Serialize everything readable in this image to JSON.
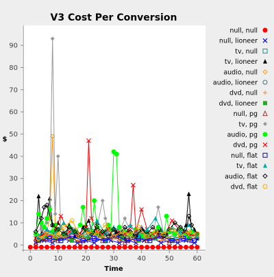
{
  "chart_data": {
    "type": "line",
    "title": "V3 Cost Per Conversion",
    "xlabel": "Time",
    "ylabel": "$",
    "xlim": [
      -3,
      63
    ],
    "ylim": [
      -3,
      99
    ],
    "xticks": [
      0,
      10,
      20,
      30,
      40,
      50,
      60
    ],
    "yticks": [
      0,
      10,
      20,
      30,
      40,
      50,
      60,
      70,
      80,
      90
    ],
    "grid": false,
    "legend_position": "right",
    "series": [
      {
        "name": "null, null",
        "color": "#ff0000",
        "marker": "circle-filled",
        "x": [
          0,
          2,
          4,
          6,
          8,
          10,
          12,
          14,
          16,
          18,
          20,
          22,
          24,
          26,
          28,
          30,
          32,
          34,
          36,
          38,
          40,
          42,
          44,
          46,
          48,
          50,
          52,
          54,
          56,
          58,
          60
        ],
        "y": [
          -1,
          -1,
          -1,
          -1,
          -1,
          -1,
          -1,
          -1,
          -1,
          -1,
          -1,
          -1,
          -1,
          -1,
          -1,
          -1,
          -1,
          -1,
          -1,
          -1,
          -1,
          -1,
          -1,
          -1,
          -1,
          -1,
          -1,
          -1,
          -1,
          -1,
          -1
        ]
      },
      {
        "name": "null, lioneer",
        "color": "#0000cc",
        "marker": "x",
        "x": [
          2,
          5,
          8,
          11,
          14,
          17,
          20,
          23,
          26,
          29,
          32,
          35,
          38,
          41,
          44,
          47,
          50,
          53,
          56,
          59
        ],
        "y": [
          1,
          2,
          1,
          3,
          2,
          1,
          2,
          1,
          3,
          2,
          1,
          2,
          1,
          2,
          3,
          1,
          2,
          1,
          2,
          1
        ]
      },
      {
        "name": "tv, null",
        "color": "#009999",
        "marker": "square-open",
        "x": [
          3,
          7,
          11,
          15,
          19,
          23,
          27,
          31,
          35,
          39,
          43,
          47,
          51,
          55,
          59
        ],
        "y": [
          3,
          5,
          2,
          4,
          3,
          6,
          2,
          5,
          3,
          4,
          2,
          5,
          3,
          4,
          2
        ]
      },
      {
        "name": "tv, lioneer",
        "color": "#000000",
        "marker": "triangle-filled",
        "x": [
          2,
          3,
          4,
          5,
          6,
          7,
          8,
          9,
          10,
          11,
          12,
          13,
          14,
          15,
          16,
          17,
          18,
          19,
          20,
          21,
          22,
          23,
          24,
          25,
          26,
          27,
          28,
          29,
          30,
          31,
          32,
          33,
          34,
          35,
          36,
          37,
          38,
          39,
          40,
          41,
          42,
          43,
          44,
          45,
          46,
          47,
          48,
          49,
          50,
          51,
          52,
          53,
          54,
          55,
          56,
          57,
          58,
          59,
          60
        ],
        "y": [
          3,
          22,
          5,
          8,
          12,
          21,
          9,
          7,
          10,
          8,
          6,
          5,
          9,
          7,
          4,
          6,
          5,
          8,
          9,
          11,
          7,
          6,
          10,
          5,
          4,
          6,
          8,
          5,
          7,
          6,
          4,
          5,
          3,
          6,
          5,
          4,
          7,
          5,
          8,
          6,
          5,
          4,
          3,
          6,
          5,
          7,
          4,
          5,
          6,
          8,
          5,
          7,
          4,
          6,
          9,
          23,
          5,
          7,
          3
        ]
      },
      {
        "name": "audio, null",
        "color": "#ff9900",
        "marker": "diamond-open",
        "x": [
          4,
          6,
          7,
          8,
          9,
          10,
          12,
          14,
          16,
          18,
          20,
          22,
          24,
          26,
          28,
          30,
          32,
          34,
          36,
          38,
          40,
          42,
          44,
          46,
          48,
          50,
          52,
          54,
          56,
          58,
          60
        ],
        "y": [
          3,
          6,
          12,
          49,
          8,
          5,
          4,
          3,
          6,
          4,
          3,
          5,
          4,
          3,
          7,
          4,
          3,
          5,
          4,
          3,
          6,
          4,
          3,
          5,
          4,
          3,
          6,
          4,
          3,
          5,
          4
        ]
      },
      {
        "name": "audio, lioneer",
        "color": "#447777",
        "marker": "circle-open",
        "x": [
          3,
          6,
          9,
          12,
          15,
          18,
          21,
          24,
          27,
          30,
          33,
          36,
          39,
          42,
          45,
          48,
          51,
          54,
          57,
          60
        ],
        "y": [
          4,
          6,
          5,
          3,
          7,
          4,
          5,
          3,
          6,
          4,
          5,
          3,
          6,
          4,
          5,
          3,
          6,
          4,
          5,
          3
        ]
      },
      {
        "name": "dvd, null",
        "color": "#ff8844",
        "marker": "plus",
        "x": [
          2,
          5,
          8,
          11,
          14,
          17,
          20,
          23,
          26,
          29,
          32,
          35,
          38,
          41,
          44,
          47,
          50,
          53,
          56,
          59
        ],
        "y": [
          2,
          3,
          2,
          4,
          3,
          2,
          3,
          2,
          4,
          3,
          2,
          3,
          2,
          4,
          3,
          2,
          3,
          2,
          4,
          3
        ]
      },
      {
        "name": "dvd, lioneer",
        "color": "#22aa22",
        "marker": "square-filled",
        "x": [
          3,
          6,
          9,
          12,
          15,
          18,
          21,
          24,
          27,
          30,
          33,
          36,
          39,
          42,
          45,
          48,
          51,
          54,
          57,
          60
        ],
        "y": [
          2,
          4,
          3,
          5,
          2,
          4,
          3,
          5,
          2,
          4,
          3,
          5,
          2,
          4,
          3,
          5,
          2,
          4,
          3,
          5
        ]
      },
      {
        "name": "null, pg",
        "color": "#993333",
        "marker": "triangle-open",
        "x": [
          2,
          6,
          10,
          14,
          18,
          22,
          26,
          30,
          34,
          38,
          42,
          46,
          50,
          54,
          58
        ],
        "y": [
          1,
          3,
          2,
          4,
          1,
          3,
          2,
          4,
          1,
          3,
          2,
          4,
          1,
          3,
          2
        ]
      },
      {
        "name": "tv, pg",
        "color": "#999999",
        "marker": "diamond-filled",
        "x": [
          2,
          4,
          6,
          7,
          8,
          9,
          10,
          11,
          12,
          14,
          16,
          18,
          20,
          22,
          24,
          26,
          27,
          28,
          30,
          32,
          34,
          36,
          38,
          40,
          42,
          44,
          46,
          48,
          50,
          52,
          54,
          56,
          58,
          60
        ],
        "y": [
          5,
          8,
          10,
          15,
          93,
          14,
          40,
          8,
          6,
          5,
          7,
          4,
          6,
          5,
          8,
          20,
          12,
          6,
          7,
          5,
          12,
          6,
          5,
          8,
          6,
          4,
          17,
          5,
          6,
          4,
          7,
          5,
          6,
          4
        ]
      },
      {
        "name": "audio, pg",
        "color": "#00ff00",
        "marker": "circle-filled",
        "x": [
          2,
          3,
          4,
          5,
          6,
          7,
          8,
          9,
          10,
          12,
          14,
          16,
          18,
          19,
          20,
          22,
          23,
          24,
          26,
          28,
          29,
          30,
          31,
          32,
          34,
          36,
          38,
          40,
          42,
          44,
          46,
          48,
          49,
          50,
          52,
          54,
          56,
          58,
          60
        ],
        "y": [
          5,
          14,
          10,
          8,
          12,
          16,
          6,
          9,
          7,
          5,
          8,
          6,
          9,
          17,
          7,
          6,
          20,
          8,
          5,
          9,
          7,
          42,
          41,
          8,
          6,
          5,
          7,
          4,
          6,
          5,
          8,
          4,
          13,
          6,
          5,
          7,
          4,
          6,
          5
        ]
      },
      {
        "name": "dvd, pg",
        "color": "#ff0000",
        "marker": "x",
        "x": [
          2,
          5,
          8,
          11,
          14,
          17,
          20,
          21,
          22,
          24,
          26,
          28,
          30,
          32,
          34,
          36,
          37,
          38,
          40,
          42,
          44,
          46,
          48,
          51,
          54,
          57,
          60
        ],
        "y": [
          3,
          5,
          4,
          13,
          6,
          4,
          8,
          47,
          12,
          6,
          5,
          7,
          4,
          6,
          5,
          8,
          27,
          6,
          16,
          7,
          5,
          6,
          4,
          11,
          6,
          5,
          4
        ]
      },
      {
        "name": "null, flat",
        "color": "#0000ff",
        "marker": "square-open",
        "x": [
          3,
          7,
          11,
          15,
          19,
          23,
          27,
          31,
          35,
          39,
          43,
          47,
          51,
          55,
          59
        ],
        "y": [
          2,
          3,
          2,
          4,
          2,
          3,
          2,
          4,
          2,
          3,
          2,
          4,
          2,
          3,
          2
        ]
      },
      {
        "name": "tv, flat",
        "color": "#00aaaa",
        "marker": "triangle-filled",
        "x": [
          3,
          6,
          9,
          12,
          15,
          18,
          21,
          24,
          27,
          30,
          33,
          36,
          39,
          42,
          45,
          48,
          51,
          54,
          57,
          60
        ],
        "y": [
          4,
          7,
          5,
          10,
          6,
          4,
          7,
          11,
          5,
          8,
          6,
          9,
          4,
          7,
          12,
          5,
          8,
          6,
          9,
          4
        ]
      },
      {
        "name": "audio, flat",
        "color": "#000000",
        "marker": "diamond-open",
        "x": [
          2,
          4,
          5,
          6,
          8,
          10,
          12,
          14,
          16,
          18,
          20,
          22,
          24,
          26,
          28,
          30,
          32,
          34,
          36,
          38,
          40,
          42,
          44,
          46,
          48,
          50,
          52,
          54,
          56,
          57,
          58,
          60
        ],
        "y": [
          6,
          12,
          17,
          18,
          9,
          7,
          5,
          8,
          6,
          4,
          7,
          5,
          8,
          6,
          4,
          7,
          5,
          8,
          6,
          4,
          7,
          5,
          8,
          6,
          4,
          7,
          10,
          8,
          6,
          13,
          9,
          5
        ]
      },
      {
        "name": "dvd, flat",
        "color": "#ffaa00",
        "marker": "circle-open",
        "x": [
          3,
          6,
          9,
          12,
          15,
          18,
          21,
          24,
          27,
          30,
          33,
          36,
          39,
          42,
          45,
          48,
          51,
          54,
          57,
          60
        ],
        "y": [
          3,
          5,
          4,
          8,
          11,
          4,
          6,
          5,
          9,
          4,
          6,
          5,
          8,
          4,
          6,
          5,
          7,
          4,
          6,
          5
        ]
      }
    ]
  }
}
